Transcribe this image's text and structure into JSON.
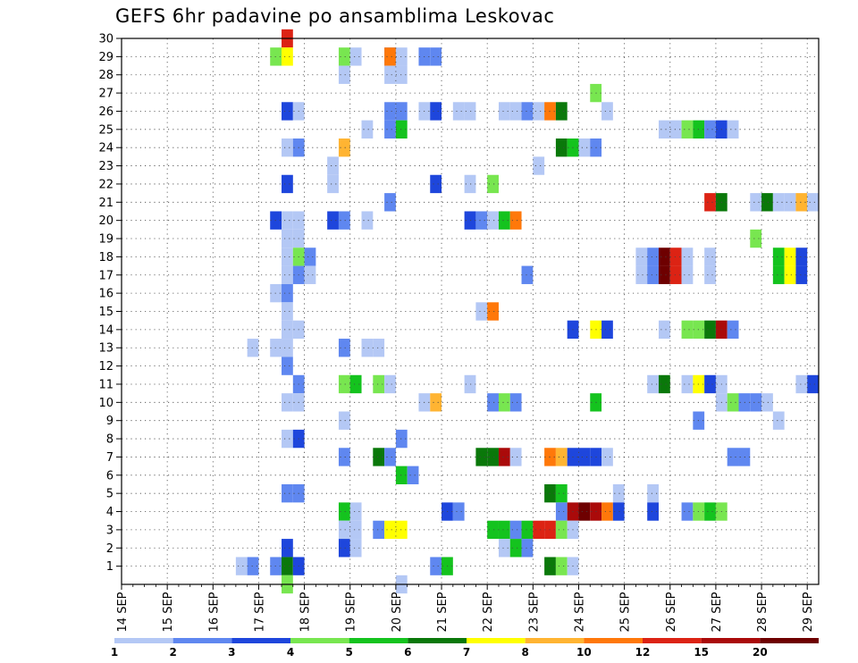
{
  "title": "GEFS 6hr padavine po ansamblima Leskovac",
  "chart_data": {
    "type": "heatmap",
    "title": "GEFS 6hr padavine po ansamblima Leskovac",
    "xlabel": "",
    "ylabel": "",
    "x_tick_labels": [
      "14 SEP",
      "15 SEP",
      "16 SEP",
      "17 SEP",
      "18 SEP",
      "19 SEP",
      "20 SEP",
      "21 SEP",
      "22 SEP",
      "23 SEP",
      "24 SEP",
      "25 SEP",
      "26 SEP",
      "27 SEP",
      "28 SEP",
      "29 SEP"
    ],
    "x_range_days": [
      0,
      15.25
    ],
    "y_range": [
      0,
      30
    ],
    "y_tick_labels": [
      "1",
      "2",
      "3",
      "4",
      "5",
      "6",
      "7",
      "8",
      "9",
      "10",
      "11",
      "12",
      "13",
      "14",
      "15",
      "16",
      "17",
      "18",
      "19",
      "20",
      "21",
      "22",
      "23",
      "24",
      "25",
      "26",
      "27",
      "28",
      "29",
      "30"
    ],
    "cell_step_days": 0.25,
    "grid": "dotted",
    "legend": {
      "position": "bottom",
      "labels": [
        "1",
        "2",
        "3",
        "4",
        "5",
        "6",
        "7",
        "8",
        "10",
        "12",
        "15",
        "20"
      ],
      "colors": [
        "#b4c8f5",
        "#5f87f0",
        "#1e46dc",
        "#78e650",
        "#14c31e",
        "#0a780a",
        "#ffff00",
        "#ffb432",
        "#ff780a",
        "#dc2314",
        "#aa0a0a",
        "#6e0000"
      ]
    },
    "color_levels": {
      "1": "#b4c8f5",
      "2": "#5f87f0",
      "3": "#1e46dc",
      "4": "#78e650",
      "5": "#14c31e",
      "6": "#0a780a",
      "7": "#ffff00",
      "8": "#ffb432",
      "9": "#ff780a",
      "10": "#dc2314",
      "11": "#aa0a0a",
      "12": "#6e0000"
    },
    "cells": [
      [
        3.5,
        30,
        10
      ],
      [
        3.25,
        29,
        4
      ],
      [
        3.5,
        29,
        7
      ],
      [
        4.75,
        29,
        4
      ],
      [
        5,
        29,
        1
      ],
      [
        5.75,
        29,
        2
      ],
      [
        5.75,
        29,
        9
      ],
      [
        6,
        29,
        1
      ],
      [
        6.5,
        29,
        2
      ],
      [
        6.75,
        29,
        2
      ],
      [
        4.75,
        28,
        1
      ],
      [
        5.75,
        28,
        1
      ],
      [
        6,
        28,
        1
      ],
      [
        10.25,
        27,
        4
      ],
      [
        3.5,
        26,
        3
      ],
      [
        3.75,
        26,
        1
      ],
      [
        5.75,
        26,
        2
      ],
      [
        6,
        26,
        2
      ],
      [
        6.5,
        26,
        1
      ],
      [
        6.75,
        26,
        3
      ],
      [
        7.25,
        26,
        1
      ],
      [
        7.5,
        26,
        1
      ],
      [
        8.25,
        26,
        1
      ],
      [
        8.5,
        26,
        1
      ],
      [
        8.75,
        26,
        2
      ],
      [
        9,
        26,
        1
      ],
      [
        9.25,
        26,
        9
      ],
      [
        9.5,
        26,
        6
      ],
      [
        10.5,
        26,
        1
      ],
      [
        5.25,
        25,
        1
      ],
      [
        5.75,
        25,
        2
      ],
      [
        6,
        25,
        5
      ],
      [
        11.75,
        25,
        1
      ],
      [
        12,
        25,
        1
      ],
      [
        12.25,
        25,
        4
      ],
      [
        12.5,
        25,
        5
      ],
      [
        12.75,
        25,
        2
      ],
      [
        13,
        25,
        3
      ],
      [
        13.25,
        25,
        1
      ],
      [
        3.5,
        24,
        1
      ],
      [
        3.75,
        24,
        2
      ],
      [
        4.75,
        24,
        8
      ],
      [
        9.5,
        24,
        6
      ],
      [
        9.75,
        24,
        5
      ],
      [
        10,
        24,
        1
      ],
      [
        10.25,
        24,
        2
      ],
      [
        4.5,
        23,
        1
      ],
      [
        9,
        23,
        1
      ],
      [
        3.5,
        22,
        3
      ],
      [
        4.5,
        22,
        1
      ],
      [
        6.75,
        22,
        3
      ],
      [
        7.5,
        22,
        1
      ],
      [
        8,
        22,
        4
      ],
      [
        5.75,
        21,
        2
      ],
      [
        12.75,
        21,
        10
      ],
      [
        13,
        21,
        6
      ],
      [
        13.75,
        21,
        1
      ],
      [
        14,
        21,
        6
      ],
      [
        14.25,
        21,
        1
      ],
      [
        14.5,
        21,
        1
      ],
      [
        14.75,
        21,
        8
      ],
      [
        15,
        21,
        1
      ],
      [
        3.25,
        20,
        3
      ],
      [
        3.5,
        20,
        1
      ],
      [
        3.75,
        20,
        1
      ],
      [
        4.5,
        20,
        3
      ],
      [
        4.75,
        20,
        2
      ],
      [
        5.25,
        20,
        1
      ],
      [
        7.5,
        20,
        3
      ],
      [
        7.75,
        20,
        2
      ],
      [
        8,
        20,
        1
      ],
      [
        8.25,
        20,
        5
      ],
      [
        8.5,
        20,
        9
      ],
      [
        3.5,
        19,
        1
      ],
      [
        3.75,
        19,
        1
      ],
      [
        13.75,
        19,
        4
      ],
      [
        3.5,
        18,
        1
      ],
      [
        3.75,
        18,
        4
      ],
      [
        4,
        18,
        2
      ],
      [
        11.25,
        18,
        1
      ],
      [
        11.5,
        18,
        2
      ],
      [
        11.75,
        18,
        12
      ],
      [
        12,
        18,
        10
      ],
      [
        12.25,
        18,
        1
      ],
      [
        12.75,
        18,
        1
      ],
      [
        14.25,
        18,
        5
      ],
      [
        14.5,
        18,
        7
      ],
      [
        14.75,
        18,
        3
      ],
      [
        3.5,
        17,
        1
      ],
      [
        3.75,
        17,
        2
      ],
      [
        4,
        17,
        1
      ],
      [
        8.75,
        17,
        2
      ],
      [
        11.25,
        17,
        1
      ],
      [
        11.5,
        17,
        2
      ],
      [
        11.75,
        17,
        12
      ],
      [
        12,
        17,
        10
      ],
      [
        12.25,
        17,
        1
      ],
      [
        12.75,
        17,
        1
      ],
      [
        14.25,
        17,
        5
      ],
      [
        14.5,
        17,
        7
      ],
      [
        14.75,
        17,
        3
      ],
      [
        3.25,
        16,
        1
      ],
      [
        3.5,
        16,
        2
      ],
      [
        3.5,
        15,
        1
      ],
      [
        7.75,
        15,
        1
      ],
      [
        8,
        15,
        9
      ],
      [
        3.5,
        14,
        1
      ],
      [
        3.75,
        14,
        1
      ],
      [
        9.75,
        14,
        3
      ],
      [
        10.25,
        14,
        7
      ],
      [
        10.5,
        14,
        3
      ],
      [
        11.75,
        14,
        1
      ],
      [
        12.25,
        14,
        4
      ],
      [
        12.5,
        14,
        4
      ],
      [
        12.75,
        14,
        6
      ],
      [
        13,
        14,
        11
      ],
      [
        13.25,
        14,
        2
      ],
      [
        2.75,
        13,
        1
      ],
      [
        3.25,
        13,
        1
      ],
      [
        3.5,
        13,
        1
      ],
      [
        4.75,
        13,
        2
      ],
      [
        5.25,
        13,
        1
      ],
      [
        5.5,
        13,
        1
      ],
      [
        3.5,
        12,
        2
      ],
      [
        3.75,
        11,
        2
      ],
      [
        4.75,
        11,
        4
      ],
      [
        5,
        11,
        5
      ],
      [
        5.5,
        11,
        4
      ],
      [
        5.75,
        11,
        1
      ],
      [
        7.5,
        11,
        1
      ],
      [
        11.5,
        11,
        1
      ],
      [
        11.75,
        11,
        6
      ],
      [
        12.25,
        11,
        1
      ],
      [
        12.5,
        11,
        7
      ],
      [
        12.75,
        11,
        3
      ],
      [
        13,
        11,
        1
      ],
      [
        14.75,
        11,
        1
      ],
      [
        15,
        11,
        3
      ],
      [
        3.5,
        10,
        1
      ],
      [
        3.75,
        10,
        1
      ],
      [
        6.5,
        10,
        1
      ],
      [
        6.75,
        10,
        8
      ],
      [
        8,
        10,
        2
      ],
      [
        8.25,
        10,
        4
      ],
      [
        8.5,
        10,
        2
      ],
      [
        10.25,
        10,
        5
      ],
      [
        13,
        10,
        1
      ],
      [
        13.25,
        10,
        4
      ],
      [
        13.5,
        10,
        2
      ],
      [
        13.75,
        10,
        2
      ],
      [
        14,
        10,
        1
      ],
      [
        4.75,
        9,
        1
      ],
      [
        12.5,
        9,
        2
      ],
      [
        14.25,
        9,
        1
      ],
      [
        3.5,
        8,
        1
      ],
      [
        3.75,
        8,
        3
      ],
      [
        6,
        8,
        2
      ],
      [
        4.75,
        7,
        2
      ],
      [
        5.5,
        7,
        6
      ],
      [
        5.75,
        7,
        2
      ],
      [
        7.75,
        7,
        6
      ],
      [
        8,
        7,
        6
      ],
      [
        8.25,
        7,
        11
      ],
      [
        8.5,
        7,
        1
      ],
      [
        9.25,
        7,
        9
      ],
      [
        9.5,
        7,
        8
      ],
      [
        9.75,
        7,
        3
      ],
      [
        10,
        7,
        3
      ],
      [
        10.25,
        7,
        3
      ],
      [
        10.5,
        7,
        1
      ],
      [
        13.25,
        7,
        2
      ],
      [
        13.5,
        7,
        2
      ],
      [
        6,
        6,
        5
      ],
      [
        6.25,
        6,
        2
      ],
      [
        3.5,
        5,
        2
      ],
      [
        3.75,
        5,
        2
      ],
      [
        9.25,
        5,
        6
      ],
      [
        9.5,
        5,
        5
      ],
      [
        10.75,
        5,
        1
      ],
      [
        11.5,
        5,
        1
      ],
      [
        4.75,
        4,
        5
      ],
      [
        5,
        4,
        1
      ],
      [
        7,
        4,
        3
      ],
      [
        7.25,
        4,
        2
      ],
      [
        9.5,
        4,
        2
      ],
      [
        9.75,
        4,
        11
      ],
      [
        10,
        4,
        12
      ],
      [
        10.25,
        4,
        11
      ],
      [
        10.5,
        4,
        9
      ],
      [
        10.75,
        4,
        3
      ],
      [
        11.5,
        4,
        3
      ],
      [
        12.25,
        4,
        2
      ],
      [
        12.5,
        4,
        4
      ],
      [
        12.75,
        4,
        5
      ],
      [
        13,
        4,
        4
      ],
      [
        4.75,
        3,
        1
      ],
      [
        5,
        3,
        1
      ],
      [
        5.5,
        3,
        2
      ],
      [
        5.75,
        3,
        7
      ],
      [
        6,
        3,
        7
      ],
      [
        8,
        3,
        5
      ],
      [
        8.25,
        3,
        5
      ],
      [
        8.5,
        3,
        2
      ],
      [
        8.75,
        3,
        5
      ],
      [
        9,
        3,
        10
      ],
      [
        9.25,
        3,
        10
      ],
      [
        9.5,
        3,
        4
      ],
      [
        9.75,
        3,
        1
      ],
      [
        3.5,
        2,
        3
      ],
      [
        4.75,
        2,
        3
      ],
      [
        5,
        2,
        1
      ],
      [
        8.25,
        2,
        1
      ],
      [
        8.5,
        2,
        5
      ],
      [
        8.75,
        2,
        2
      ],
      [
        2.5,
        1,
        1
      ],
      [
        2.75,
        1,
        2
      ],
      [
        3.25,
        1,
        2
      ],
      [
        3.5,
        1,
        6
      ],
      [
        3.75,
        1,
        3
      ],
      [
        6.75,
        1,
        2
      ],
      [
        7,
        1,
        5
      ],
      [
        9.25,
        1,
        6
      ],
      [
        9.5,
        1,
        4
      ],
      [
        9.75,
        1,
        1
      ],
      [
        3.5,
        0,
        4
      ],
      [
        6,
        0,
        1
      ]
    ]
  }
}
